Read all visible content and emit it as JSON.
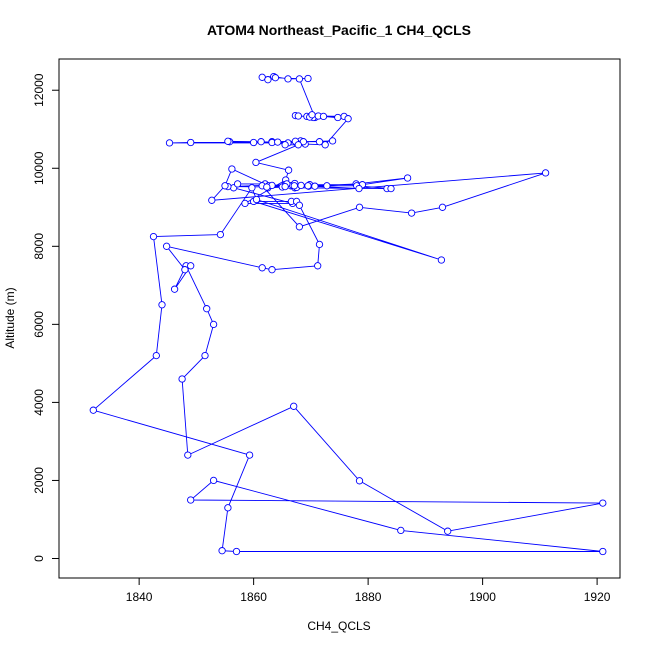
{
  "chart_data": {
    "type": "line",
    "title": "ATOM4 Northeast_Pacific_1 CH4_QCLS",
    "xlabel": "CH4_QCLS",
    "ylabel": "Altitude (m)",
    "xlim": [
      1826,
      1924
    ],
    "ylim": [
      -500,
      12800
    ],
    "x_ticks": [
      1840,
      1860,
      1880,
      1900,
      1920
    ],
    "y_ticks": [
      0,
      2000,
      4000,
      6000,
      8000,
      10000,
      12000
    ],
    "colors": {
      "series": "#0000ff",
      "axis": "#000000"
    },
    "markers": "open-circle",
    "series": [
      {
        "x": [
          1869.5,
          1866,
          1863.5,
          1861.5,
          1862.5,
          1863.8,
          1868,
          1870.7,
          1867.3,
          1867.8,
          1869.3,
          1870.4,
          1869.8,
          1870.2,
          1871.3,
          1875.8,
          1874.7,
          1872.2,
          1876.5,
          1872.5,
          1869,
          1868.2,
          1868.7,
          1867.5,
          1860,
          1849,
          1845.3,
          1866,
          1867.3,
          1863.2,
          1871.5,
          1873.8,
          1863.2,
          1861.3,
          1855.8,
          1855.5,
          1864.2,
          1865.5,
          1867.8,
          1860.4,
          1866.1,
          1865.6,
          1858.5,
          1866.8,
          1866.6,
          1867.5,
          1860,
          1892.8,
          1860.5,
          1859.7,
          1854.2,
          1842.5,
          1844,
          1843,
          1832,
          1859.3,
          1855.5,
          1854.5,
          1857,
          1921,
          1885.7,
          1853,
          1849,
          1921,
          1893.9,
          1878.5,
          1867,
          1848.5,
          1847.5,
          1851.5,
          1853,
          1851.8,
          1848.2,
          1846.2,
          1849,
          1848,
          1844.8,
          1861.5,
          1863.2,
          1871.2,
          1871.5,
          1868,
          1856.5,
          1857.2,
          1862,
          1862.5,
          1877.9,
          1886.9,
          1879,
          1865.5,
          1855.5,
          1865,
          1867.2,
          1883.3,
          1884,
          1878,
          1866.5,
          1861.5,
          1868,
          1878.5,
          1887.6,
          1893,
          1911,
          1852.7,
          1855,
          1856.2,
          1862.6,
          1869.8,
          1866.8,
          1867.2,
          1867.5,
          1869.6,
          1878.4,
          1868.3,
          1865.8,
          1869.5,
          1863.2,
          1865.5,
          1867.1,
          1862.3,
          1870.7,
          1872.8
        ],
        "y": [
          12300,
          12290,
          12350,
          12330,
          12270,
          12320,
          12290,
          11300,
          11350,
          11340,
          11330,
          11300,
          11310,
          11370,
          11340,
          11330,
          11300,
          11330,
          11270,
          10600,
          10620,
          10700,
          10680,
          10650,
          10660,
          10660,
          10650,
          10650,
          10690,
          10680,
          10680,
          10700,
          10660,
          10680,
          10680,
          10690,
          10670,
          10600,
          10600,
          10150,
          9950,
          9700,
          9100,
          9100,
          9150,
          9150,
          9150,
          7650,
          9200,
          9500,
          8300,
          8250,
          6500,
          5200,
          3800,
          2650,
          1300,
          200,
          180,
          180,
          720,
          2000,
          1500,
          1420,
          700,
          1990,
          3900,
          2650,
          4600,
          5200,
          6000,
          6400,
          7500,
          6900,
          7500,
          7400,
          8000,
          7450,
          7400,
          7500,
          8050,
          9050,
          9500,
          9600,
          9600,
          9500,
          9600,
          9750,
          9580,
          9580,
          9530,
          9520,
          9500,
          9480,
          9480,
          9550,
          9550,
          9550,
          8500,
          9000,
          8850,
          9000,
          9880,
          9180,
          9550,
          9980,
          9550,
          9580,
          9560,
          9610,
          9510,
          9540,
          9480,
          9560,
          9600,
          9550,
          9560,
          9530,
          9550,
          9520,
          9540,
          9550
        ]
      }
    ]
  }
}
